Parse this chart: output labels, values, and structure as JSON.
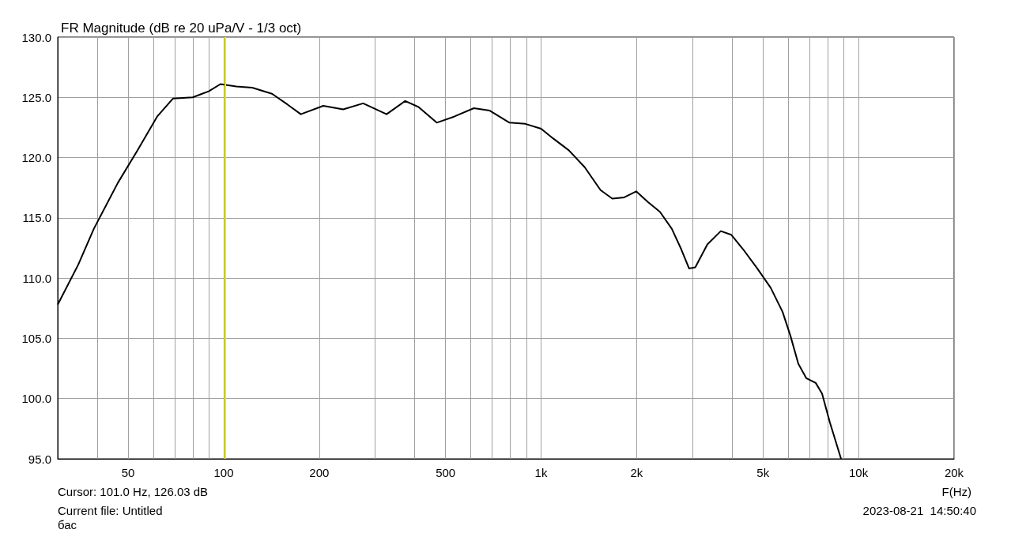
{
  "chart_data": {
    "type": "line",
    "title": "FR Magnitude (dB re 20 uPa/V - 1/3 oct)",
    "xlabel": "F(Hz)",
    "annotations": [
      "Cursor: 101.0 Hz, 126.03 dB",
      "Current file: Untitled",
      "бас",
      "2023-08-21  14:50:40"
    ],
    "log": "x",
    "grid": true,
    "marker": "none",
    "line_style": "solid",
    "xlim": [
      30,
      20000
    ],
    "xticks": [
      {
        "value": 30,
        "label": null
      },
      {
        "value": 40,
        "label": null
      },
      50,
      {
        "value": 60,
        "label": null
      },
      {
        "value": 70,
        "label": null
      },
      {
        "value": 80,
        "label": null
      },
      {
        "value": 90,
        "label": null
      },
      100,
      200,
      {
        "value": 300,
        "label": null
      },
      {
        "value": 400,
        "label": null
      },
      500,
      {
        "value": 600,
        "label": null
      },
      {
        "value": 700,
        "label": null
      },
      {
        "value": 800,
        "label": null
      },
      {
        "value": 900,
        "label": null
      },
      {
        "value": 1000,
        "label": "1k"
      },
      {
        "value": 2000,
        "label": "2k"
      },
      {
        "value": 3000,
        "label": null
      },
      {
        "value": 4000,
        "label": null
      },
      {
        "value": 5000,
        "label": "5k"
      },
      {
        "value": 6000,
        "label": null
      },
      {
        "value": 7000,
        "label": null
      },
      {
        "value": 8000,
        "label": null
      },
      {
        "value": 9000,
        "label": null
      },
      {
        "value": 10000,
        "label": "10k"
      },
      {
        "value": 20000,
        "label": "20k"
      }
    ],
    "ylim": [
      95,
      130
    ],
    "yticks": [
      {
        "value": 95,
        "label": "95.0"
      },
      {
        "value": 100,
        "label": "100.0"
      },
      {
        "value": 105,
        "label": "105.0"
      },
      {
        "value": 110,
        "label": "110.0"
      },
      {
        "value": 115,
        "label": "115.0"
      },
      {
        "value": 120,
        "label": "120.0"
      },
      {
        "value": 125,
        "label": "125.0"
      },
      {
        "value": 130,
        "label": "130.0"
      }
    ],
    "ref_lines": [
      {
        "axis": "x",
        "value": 101,
        "color": "#e8e800"
      }
    ],
    "series": [
      {
        "color": "#000000",
        "x": [
          30,
          34.8,
          39,
          46.4,
          53.5,
          61.7,
          69.2,
          79.9,
          89.7,
          97.7,
          109.6,
          123,
          142,
          159,
          175,
          206,
          238,
          275,
          326,
          373,
          411,
          469,
          532,
          614,
          689,
          795,
          892,
          1000,
          1090,
          1223,
          1372,
          1539,
          1676,
          1828,
          1993,
          2173,
          2368,
          2580,
          2763,
          2925,
          3060,
          3340,
          3682,
          3969,
          4326,
          4796,
          5287,
          5763,
          6104,
          6460,
          6843,
          7330,
          7676,
          8128,
          8810
        ],
        "values": [
          107.8,
          111.1,
          114.1,
          117.9,
          120.6,
          123.4,
          124.9,
          125,
          125.5,
          126.1,
          125.9,
          125.8,
          125.3,
          124.4,
          123.6,
          124.3,
          124,
          124.5,
          123.6,
          124.7,
          124.2,
          122.9,
          123.4,
          124.1,
          123.9,
          122.9,
          122.8,
          122.4,
          121.6,
          120.6,
          119.2,
          117.3,
          116.6,
          116.7,
          117.2,
          116.3,
          115.5,
          114.1,
          112.4,
          110.8,
          110.9,
          112.8,
          113.9,
          113.6,
          112.4,
          110.8,
          109.2,
          107.2,
          105.2,
          102.9,
          101.7,
          101.3,
          100.4,
          98,
          95
        ]
      }
    ]
  }
}
